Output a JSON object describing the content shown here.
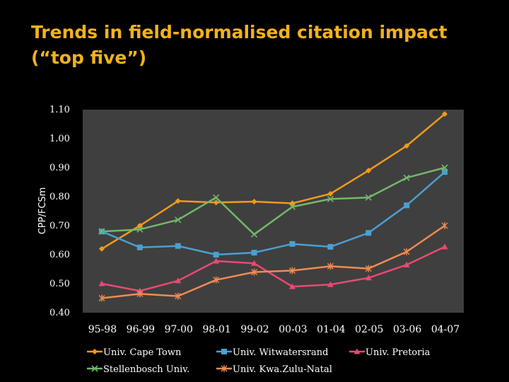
{
  "slide": {
    "title_line1": "Trends in field-normalised citation impact",
    "title_line2": "(“top five”)"
  },
  "colors": {
    "title": "#F2B21B",
    "plot_bg": "#3F3F3F",
    "text": "#FFFFFF",
    "series": [
      "#F29A1C",
      "#4B9FD1",
      "#E84A72",
      "#72B86A",
      "#F08A52"
    ]
  },
  "chart_data": {
    "type": "line",
    "ylabel": "CPP/FCSm",
    "ylim": [
      0.4,
      1.1
    ],
    "yticks": [
      "1.10",
      "1.00",
      "0.90",
      "0.80",
      "0.70",
      "0.60",
      "0.50",
      "0.40"
    ],
    "ytick_values": [
      1.1,
      1.0,
      0.9,
      0.8,
      0.7,
      0.6,
      0.5,
      0.4
    ],
    "categories": [
      "95-98",
      "96-99",
      "97-00",
      "98-01",
      "99-02",
      "00-03",
      "01-04",
      "02-05",
      "03-06",
      "04-07"
    ],
    "series": [
      {
        "name": "Univ. Cape Town",
        "marker": "diamond",
        "values": [
          0.62,
          0.7,
          0.785,
          0.78,
          0.783,
          0.777,
          0.81,
          0.89,
          0.975,
          1.085
        ]
      },
      {
        "name": "Univ. Witwatersrand",
        "marker": "square",
        "values": [
          0.68,
          0.625,
          0.63,
          0.6,
          0.607,
          0.637,
          0.627,
          0.675,
          0.77,
          0.885
        ]
      },
      {
        "name": "Univ. Pretoria",
        "marker": "triangle",
        "values": [
          0.5,
          0.475,
          0.51,
          0.578,
          0.57,
          0.49,
          0.497,
          0.52,
          0.565,
          0.627
        ]
      },
      {
        "name": "Stellenbosch Univ.",
        "marker": "x",
        "values": [
          0.68,
          0.687,
          0.72,
          0.797,
          0.67,
          0.765,
          0.792,
          0.797,
          0.865,
          0.9
        ]
      },
      {
        "name": "Univ. KwaZulu-Natal",
        "marker": "star",
        "values": [
          0.45,
          0.465,
          0.457,
          0.513,
          0.54,
          0.545,
          0.56,
          0.552,
          0.61,
          0.7
        ]
      }
    ],
    "legend": [
      "Univ. Cape Town",
      "Univ. Witwatersrand",
      "Univ. Pretoria",
      "Stellenbosch Univ.",
      "Univ. Kwa.Zulu-Natal"
    ]
  }
}
